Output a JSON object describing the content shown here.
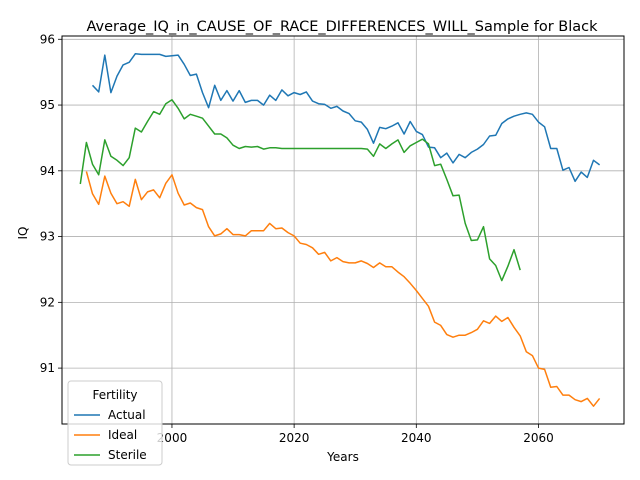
{
  "chart_data": {
    "type": "line",
    "title": "Average_IQ_in_CAUSE_OF_RACE_DIFFERENCES_WILL_Sample for Black",
    "xlabel": "Years",
    "ylabel": "IQ",
    "xlim": [
      1982,
      2074
    ],
    "ylim": [
      90.15,
      96.05
    ],
    "xticks": [
      2000,
      2020,
      2040,
      2060
    ],
    "yticks": [
      91,
      92,
      93,
      94,
      95,
      96
    ],
    "grid": true,
    "legend": {
      "title": "Fertility",
      "position": "lower-left"
    },
    "series": [
      {
        "name": "Actual",
        "color": "#1f77b4",
        "x": [
          1987,
          1988,
          1989,
          1990,
          1991,
          1992,
          1993,
          1994,
          1995,
          1996,
          1997,
          1998,
          1999,
          2000,
          2001,
          2002,
          2003,
          2004,
          2005,
          2006,
          2007,
          2008,
          2009,
          2010,
          2011,
          2012,
          2013,
          2014,
          2015,
          2016,
          2017,
          2018,
          2019,
          2020,
          2021,
          2022,
          2023,
          2024,
          2025,
          2026,
          2027,
          2028,
          2029,
          2030,
          2031,
          2032,
          2033,
          2034,
          2035,
          2036,
          2037,
          2038,
          2039,
          2040,
          2041,
          2042,
          2043,
          2044,
          2045,
          2046,
          2047,
          2048,
          2049,
          2050,
          2051,
          2052,
          2053,
          2054,
          2055,
          2056,
          2057,
          2058,
          2059,
          2060,
          2061,
          2062,
          2063,
          2064,
          2065,
          2066,
          2067,
          2068,
          2069,
          2070
        ],
        "values": [
          95.3,
          95.2,
          95.76,
          95.19,
          95.44,
          95.61,
          95.65,
          95.78,
          95.77,
          95.77,
          95.77,
          95.77,
          95.74,
          95.75,
          95.76,
          95.62,
          95.45,
          95.47,
          95.19,
          94.96,
          95.3,
          95.07,
          95.22,
          95.06,
          95.22,
          95.04,
          95.07,
          95.07,
          95.0,
          95.15,
          95.07,
          95.23,
          95.14,
          95.19,
          95.16,
          95.2,
          95.06,
          95.02,
          95.01,
          94.95,
          94.98,
          94.91,
          94.87,
          94.76,
          94.74,
          94.63,
          94.42,
          94.66,
          94.64,
          94.68,
          94.73,
          94.56,
          94.75,
          94.6,
          94.55,
          94.36,
          94.35,
          94.2,
          94.27,
          94.12,
          94.25,
          94.2,
          94.28,
          94.33,
          94.4,
          94.53,
          94.54,
          94.72,
          94.79,
          94.83,
          94.86,
          94.88,
          94.86,
          94.74,
          94.67,
          94.34,
          94.34,
          94.01,
          94.05,
          93.84,
          93.98,
          93.9,
          94.16,
          94.09
        ]
      },
      {
        "name": "Ideal",
        "color": "#ff7f0e",
        "x": [
          1985,
          1986,
          1987,
          1988,
          1989,
          1990,
          1991,
          1992,
          1993,
          1994,
          1995,
          1996,
          1997,
          1998,
          1999,
          2000,
          2001,
          2002,
          2003,
          2004,
          2005,
          2006,
          2007,
          2008,
          2009,
          2010,
          2011,
          2012,
          2013,
          2014,
          2015,
          2016,
          2017,
          2018,
          2019,
          2020,
          2021,
          2022,
          2023,
          2024,
          2025,
          2026,
          2027,
          2028,
          2029,
          2030,
          2031,
          2032,
          2033,
          2034,
          2035,
          2036,
          2037,
          2038,
          2039,
          2040,
          2041,
          2042,
          2043,
          2044,
          2045,
          2046,
          2047,
          2048,
          2049,
          2050,
          2051,
          2052,
          2053,
          2054,
          2055,
          2056,
          2057,
          2058,
          2059,
          2060,
          2061,
          2062,
          2063,
          2064,
          2065,
          2066,
          2067,
          2068,
          2069,
          2070
        ],
        "values": [
          null,
          93.99,
          93.65,
          93.49,
          93.92,
          93.66,
          93.5,
          93.53,
          93.46,
          93.87,
          93.56,
          93.68,
          93.71,
          93.59,
          93.81,
          93.94,
          93.66,
          93.48,
          93.51,
          93.44,
          93.41,
          93.15,
          93.01,
          93.04,
          93.12,
          93.03,
          93.03,
          93.01,
          93.09,
          93.09,
          93.09,
          93.2,
          93.12,
          93.13,
          93.06,
          93.01,
          92.9,
          92.88,
          92.83,
          92.73,
          92.76,
          92.63,
          92.68,
          92.62,
          92.6,
          92.6,
          92.63,
          92.59,
          92.53,
          92.6,
          92.54,
          92.54,
          92.46,
          92.39,
          92.29,
          92.18,
          92.06,
          91.94,
          91.7,
          91.65,
          91.51,
          91.47,
          91.5,
          91.5,
          91.54,
          91.59,
          91.72,
          91.68,
          91.79,
          91.71,
          91.77,
          91.62,
          91.49,
          91.25,
          91.19,
          91.0,
          90.98,
          90.71,
          90.72,
          90.59,
          90.59,
          90.52,
          90.49,
          90.54,
          90.42,
          90.54
        ]
      },
      {
        "name": "Sterile",
        "color": "#2ca02c",
        "x": [
          1985,
          1986,
          1987,
          1988,
          1989,
          1990,
          1991,
          1992,
          1993,
          1994,
          1995,
          1996,
          1997,
          1998,
          1999,
          2000,
          2001,
          2002,
          2003,
          2004,
          2005,
          2006,
          2007,
          2008,
          2009,
          2010,
          2011,
          2012,
          2013,
          2014,
          2015,
          2016,
          2017,
          2018,
          2019,
          2020,
          2021,
          2022,
          2023,
          2024,
          2025,
          2026,
          2027,
          2028,
          2029,
          2030,
          2031,
          2032,
          2033,
          2034,
          2035,
          2036,
          2037,
          2038,
          2039,
          2040,
          2041,
          2042,
          2043,
          2044,
          2045,
          2046,
          2047,
          2048,
          2049,
          2050,
          2051,
          2052,
          2053,
          2054,
          2055,
          2056,
          2057
        ],
        "values": [
          93.8,
          94.43,
          94.1,
          93.94,
          94.47,
          94.22,
          94.16,
          94.08,
          94.2,
          94.65,
          94.59,
          94.75,
          94.9,
          94.86,
          95.02,
          95.08,
          94.95,
          94.79,
          94.86,
          94.83,
          94.8,
          94.68,
          94.56,
          94.56,
          94.5,
          94.39,
          94.34,
          94.37,
          94.36,
          94.37,
          94.33,
          94.35,
          94.35,
          94.34,
          94.34,
          94.34,
          94.34,
          94.34,
          94.34,
          94.34,
          94.34,
          94.34,
          94.34,
          94.34,
          94.34,
          94.34,
          94.34,
          94.33,
          94.22,
          94.41,
          94.34,
          94.41,
          94.47,
          94.28,
          94.38,
          94.43,
          94.48,
          94.41,
          94.08,
          94.1,
          93.87,
          93.62,
          93.63,
          93.2,
          92.94,
          92.95,
          93.15,
          92.66,
          92.56,
          92.33,
          92.55,
          92.8,
          92.49
        ]
      }
    ]
  }
}
